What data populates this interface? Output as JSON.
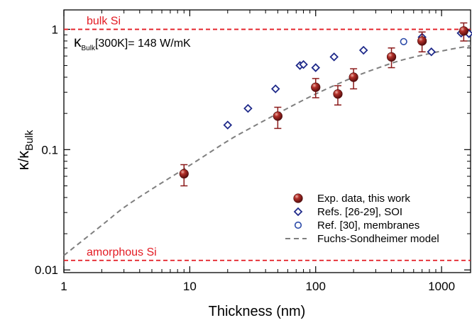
{
  "chart_data": {
    "type": "scatter",
    "xscale": "log",
    "yscale": "log",
    "xlim": [
      1,
      1700
    ],
    "ylim": [
      0.0095,
      1.45
    ],
    "xlabel": "Thickness (nm)",
    "ylabel": {
      "kappa": "κ",
      "slash": "/",
      "kappa2": "κ",
      "sub": "Bulk"
    },
    "x_ticks": [
      {
        "value": 1,
        "label": "1"
      },
      {
        "value": 10,
        "label": "10"
      },
      {
        "value": 100,
        "label": "100"
      },
      {
        "value": 1000,
        "label": "1000"
      }
    ],
    "y_ticks": [
      {
        "value": 0.01,
        "label": "0.01"
      },
      {
        "value": 0.1,
        "label": "0.1"
      },
      {
        "value": 1,
        "label": "1"
      }
    ],
    "annotation": {
      "kappa": "κ",
      "sub": "Bulk",
      "rest": "[300K]= 148 W/mK"
    },
    "reference_lines": [
      {
        "name": "bulk Si",
        "value": 1.0,
        "color": "#e31b23"
      },
      {
        "name": "amorphous Si",
        "value": 0.012,
        "color": "#e31b23"
      }
    ],
    "series": [
      {
        "name": "Exp. data, this work",
        "marker": "sphere",
        "color": "#8b1a1a",
        "points": [
          {
            "x": 9,
            "y": 0.063,
            "err_low": 0.05,
            "err_high": 0.075
          },
          {
            "x": 50,
            "y": 0.19,
            "err_low": 0.15,
            "err_high": 0.225
          },
          {
            "x": 100,
            "y": 0.33,
            "err_low": 0.27,
            "err_high": 0.39
          },
          {
            "x": 150,
            "y": 0.29,
            "err_low": 0.235,
            "err_high": 0.34
          },
          {
            "x": 200,
            "y": 0.4,
            "err_low": 0.32,
            "err_high": 0.47
          },
          {
            "x": 400,
            "y": 0.59,
            "err_low": 0.48,
            "err_high": 0.7
          },
          {
            "x": 700,
            "y": 0.8,
            "err_low": 0.65,
            "err_high": 0.95
          },
          {
            "x": 1500,
            "y": 0.97,
            "err_low": 0.8,
            "err_high": 1.13
          }
        ]
      },
      {
        "name": "Refs. [26-29], SOI",
        "marker": "diamond",
        "color": "#1f2a8a",
        "points": [
          {
            "x": 20,
            "y": 0.16
          },
          {
            "x": 29,
            "y": 0.22
          },
          {
            "x": 48,
            "y": 0.32
          },
          {
            "x": 75,
            "y": 0.5
          },
          {
            "x": 80,
            "y": 0.51
          },
          {
            "x": 100,
            "y": 0.48
          },
          {
            "x": 140,
            "y": 0.59
          },
          {
            "x": 240,
            "y": 0.67
          },
          {
            "x": 400,
            "y": 0.59
          },
          {
            "x": 700,
            "y": 0.86
          },
          {
            "x": 830,
            "y": 0.65
          },
          {
            "x": 1430,
            "y": 0.93
          },
          {
            "x": 1650,
            "y": 0.92
          }
        ]
      },
      {
        "name": "Ref. [30], membranes",
        "marker": "circle",
        "color": "#2b4aa8",
        "points": [
          {
            "x": 500,
            "y": 0.79
          },
          {
            "x": 700,
            "y": 0.79
          }
        ]
      },
      {
        "name": "Fuchs-Sondheimer model",
        "marker": "dashed-line",
        "color": "#7f7f7f",
        "curve": [
          {
            "x": 1,
            "y": 0.0132
          },
          {
            "x": 2,
            "y": 0.0235
          },
          {
            "x": 3,
            "y": 0.033
          },
          {
            "x": 5,
            "y": 0.047
          },
          {
            "x": 10,
            "y": 0.074
          },
          {
            "x": 20,
            "y": 0.118
          },
          {
            "x": 30,
            "y": 0.15
          },
          {
            "x": 50,
            "y": 0.2
          },
          {
            "x": 100,
            "y": 0.29
          },
          {
            "x": 200,
            "y": 0.4
          },
          {
            "x": 300,
            "y": 0.47
          },
          {
            "x": 500,
            "y": 0.56
          },
          {
            "x": 1000,
            "y": 0.66
          },
          {
            "x": 1700,
            "y": 0.73
          }
        ]
      }
    ]
  }
}
